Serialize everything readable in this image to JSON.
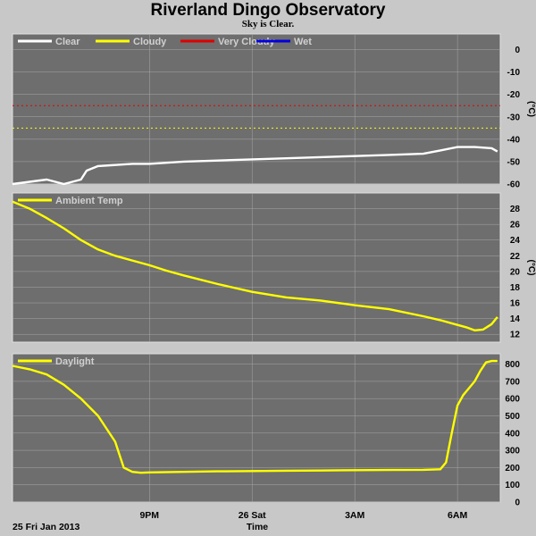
{
  "title": "Riverland Dingo Observatory",
  "subtitle": "Sky is Clear.",
  "colors": {
    "background": "#c8c8c8",
    "panel": "#6e6e6e",
    "grid": "#a8a8a8",
    "clear": "#ffffff",
    "cloudy": "#ffff00",
    "very_cloudy": "#e00000",
    "wet": "#0000e0",
    "ambient": "#ffff00",
    "daylight": "#ffff00"
  },
  "footer": {
    "date_label": "25 Fri Jan 2013",
    "x_title": "Time"
  },
  "chart_data": [
    {
      "type": "line",
      "panel": "sky",
      "legend": [
        "Clear",
        "Cloudy",
        "Very Cloudy",
        "Wet"
      ],
      "y_unit": "(°C)",
      "yticks": [
        0,
        -10,
        -20,
        -30,
        -40,
        -50,
        -60
      ],
      "ylim": [
        -60,
        7
      ],
      "xlim_hours": [
        17.0,
        7.25
      ],
      "xtick_labels": [
        "9PM",
        "26 Sat",
        "3AM",
        "6AM"
      ],
      "thresholds": [
        {
          "name": "Very Cloudy",
          "value": -25
        },
        {
          "name": "Cloudy",
          "value": -35
        }
      ],
      "series": [
        {
          "name": "Clear",
          "x": [
            "17:00",
            "17:30",
            "18:00",
            "18:30",
            "19:00",
            "19:10",
            "19:30",
            "20:00",
            "20:30",
            "21:00",
            "22:00",
            "23:00",
            "0:00",
            "1:00",
            "2:00",
            "3:00",
            "4:00",
            "5:00",
            "5:30",
            "6:00",
            "6:30",
            "7:00",
            "7:10"
          ],
          "values": [
            -60,
            -59,
            -58,
            -60,
            -58,
            -54,
            -52,
            -51.5,
            -51,
            -51,
            -50,
            -49.5,
            -49,
            -48.5,
            -48,
            -47.5,
            -47,
            -46.5,
            -45,
            -43.5,
            -43.5,
            -44,
            -45.5
          ]
        }
      ]
    },
    {
      "type": "line",
      "panel": "ambient",
      "legend": [
        "Ambient Temp"
      ],
      "y_unit": "(°C)",
      "yticks": [
        28,
        26,
        24,
        22,
        20,
        18,
        16,
        14,
        12
      ],
      "ylim": [
        11,
        30
      ],
      "series": [
        {
          "name": "Ambient Temp",
          "x": [
            "17:00",
            "17:30",
            "18:00",
            "18:30",
            "19:00",
            "19:30",
            "20:00",
            "20:30",
            "21:00",
            "21:30",
            "22:00",
            "23:00",
            "0:00",
            "1:00",
            "2:00",
            "3:00",
            "4:00",
            "5:00",
            "5:30",
            "6:00",
            "6:15",
            "6:30",
            "6:45",
            "7:00",
            "7:10"
          ],
          "values": [
            28.9,
            28.0,
            26.8,
            25.5,
            24.0,
            22.8,
            22.0,
            21.4,
            20.8,
            20.1,
            19.5,
            18.4,
            17.4,
            16.7,
            16.3,
            15.7,
            15.2,
            14.3,
            13.8,
            13.2,
            12.9,
            12.5,
            12.6,
            13.3,
            14.2
          ]
        }
      ]
    },
    {
      "type": "line",
      "panel": "daylight",
      "legend": [
        "Daylight"
      ],
      "yticks": [
        800,
        700,
        600,
        500,
        400,
        300,
        200,
        100,
        0
      ],
      "ylim": [
        0,
        860
      ],
      "series": [
        {
          "name": "Daylight",
          "x": [
            "17:00",
            "17:30",
            "18:00",
            "18:30",
            "19:00",
            "19:30",
            "20:00",
            "20:15",
            "20:30",
            "20:45",
            "21:00",
            "22:00",
            "23:00",
            "0:00",
            "1:00",
            "2:00",
            "3:00",
            "4:00",
            "5:00",
            "5:30",
            "5:40",
            "5:50",
            "6:00",
            "6:10",
            "6:20",
            "6:30",
            "6:40",
            "6:50",
            "7:00",
            "7:10"
          ],
          "values": [
            790,
            770,
            740,
            680,
            600,
            500,
            350,
            200,
            175,
            170,
            172,
            175,
            178,
            180,
            182,
            183,
            185,
            186,
            187,
            190,
            230,
            400,
            560,
            620,
            660,
            700,
            760,
            810,
            818,
            818
          ]
        }
      ]
    }
  ]
}
